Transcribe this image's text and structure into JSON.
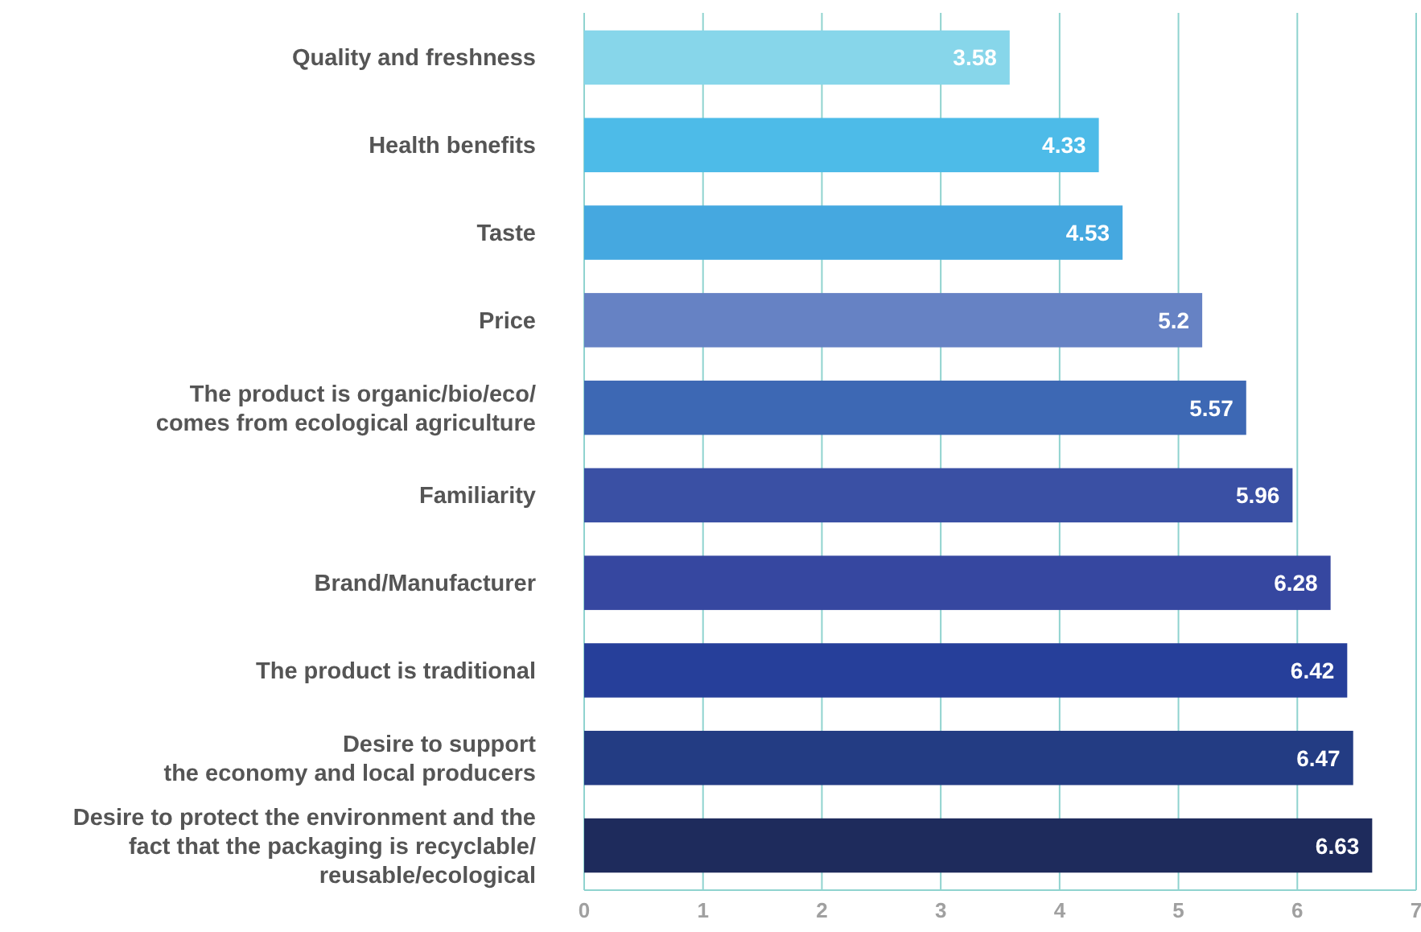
{
  "chart_data": {
    "type": "bar",
    "orientation": "horizontal",
    "categories": [
      "Quality and freshness",
      "Health benefits",
      "Taste",
      "Price",
      "The product is organic/bio/eco/\ncomes from ecological agriculture",
      "Familiarity",
      "Brand/Manufacturer",
      "The product is traditional",
      "Desire to support\nthe economy and local producers",
      "Desire to protect the environment and the\nfact that the packaging is recyclable/\nreusable/ecological"
    ],
    "values": [
      3.58,
      4.33,
      4.53,
      5.2,
      5.57,
      5.96,
      6.28,
      6.42,
      6.47,
      6.63
    ],
    "colors": [
      "#87d6ea",
      "#4dbbe8",
      "#45a8e0",
      "#6682c4",
      "#3d68b4",
      "#3a50a4",
      "#3647a0",
      "#263f9a",
      "#233c83",
      "#1e2b5c"
    ],
    "xlim": [
      0,
      7
    ],
    "xticks": [
      0,
      1,
      2,
      3,
      4,
      5,
      6,
      7
    ],
    "grid": "x",
    "data_labels": true
  }
}
